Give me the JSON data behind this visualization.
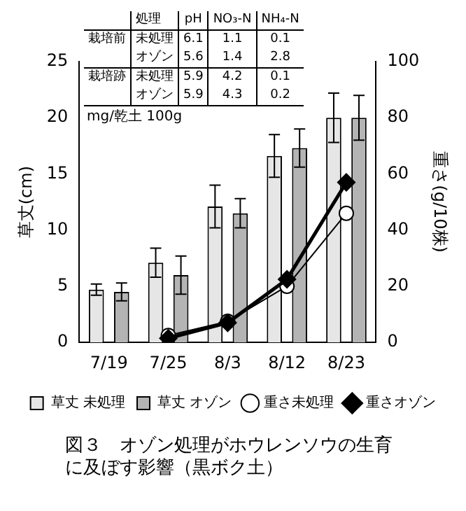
{
  "chart_data": {
    "type": "bar",
    "title": "図３　オゾン処理がホウレンソウの生育に及ぼす影響（黒ボク土）",
    "categories": [
      "7/19",
      "7/25",
      "8/3",
      "8/12",
      "8/23"
    ],
    "series": [
      {
        "name": "草丈 未処理",
        "color": "#e6e6e6",
        "values": [
          4.7,
          7.1,
          12.1,
          16.6,
          20.0
        ],
        "errors": [
          0.5,
          1.3,
          1.9,
          1.9,
          2.2
        ]
      },
      {
        "name": "草丈 オゾン",
        "color": "#b4b4b4",
        "values": [
          4.5,
          6.0,
          11.5,
          17.3,
          20.0
        ],
        "errors": [
          0.8,
          1.7,
          1.3,
          1.7,
          2.0
        ]
      },
      {
        "name": "重さ未処理",
        "type": "line",
        "axis": "y2",
        "color": "#000000",
        "marker": "circle",
        "values": [
          null,
          2.5,
          7.5,
          20,
          46
        ]
      },
      {
        "name": "重さオゾン",
        "type": "line",
        "axis": "y2",
        "color": "#000000",
        "marker": "diamond",
        "values": [
          null,
          1.5,
          7,
          22.5,
          57
        ]
      }
    ],
    "ylabel": "草丈(cm)",
    "y2label": "重さ(g/10株)",
    "ylim": [
      0,
      25
    ],
    "yticks": [
      0,
      5,
      10,
      15,
      20,
      25
    ],
    "y2lim": [
      0,
      100
    ],
    "y2ticks": [
      0,
      20,
      40,
      60,
      80,
      100
    ],
    "grid": false,
    "legend": "bottom",
    "annotations": [
      "\t処理\tpH\tNO₃-N\tNH₄-N",
      "栽培前\t未処理\t6.1\t1.1\t0.1",
      "\tオゾン\t5.6\t1.4\t2.8",
      "栽培跡\t未処理\t5.9\t4.2\t0.1",
      "\tオゾン\t5.9\t4.3\t0.2",
      "mg/乾土 100g"
    ]
  }
}
